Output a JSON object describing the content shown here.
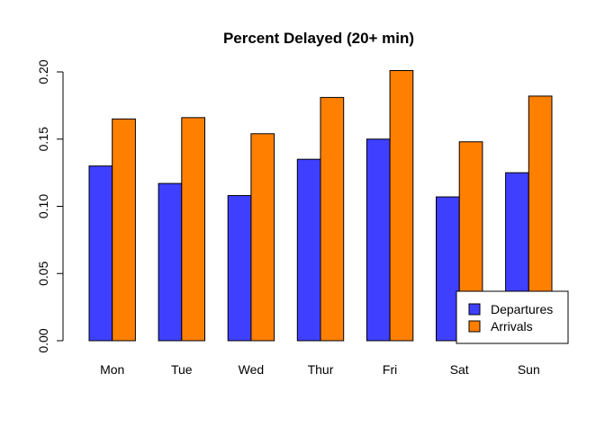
{
  "chart_data": {
    "type": "bar",
    "title": "Percent Delayed (20+ min)",
    "xlabel": "",
    "ylabel": "",
    "categories": [
      "Mon",
      "Tue",
      "Wed",
      "Thur",
      "Fri",
      "Sat",
      "Sun"
    ],
    "series": [
      {
        "name": "Departures",
        "color": "#3F3FFF",
        "values": [
          0.13,
          0.117,
          0.108,
          0.135,
          0.15,
          0.107,
          0.125
        ]
      },
      {
        "name": "Arrivals",
        "color": "#FF7F00",
        "values": [
          0.165,
          0.166,
          0.154,
          0.181,
          0.201,
          0.148,
          0.182
        ]
      }
    ],
    "ylim": [
      0,
      0.2
    ],
    "yticks": [
      0.0,
      0.05,
      0.1,
      0.15,
      0.2
    ],
    "ytick_labels": [
      "0.00",
      "0.05",
      "0.10",
      "0.15",
      "0.20"
    ],
    "grid": false,
    "legend_position": "bottom-right"
  }
}
